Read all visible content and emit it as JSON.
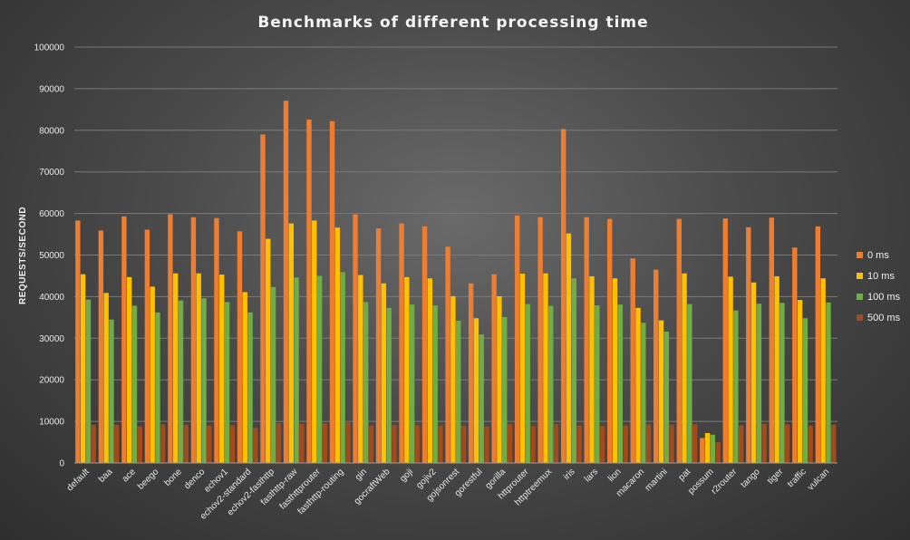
{
  "chart_data": {
    "type": "bar",
    "title": "Benchmarks  of  different  processing  time",
    "xlabel": "",
    "ylabel": "REQUESTS/SECOND",
    "ylim": [
      0,
      100000
    ],
    "yticks": [
      0,
      10000,
      20000,
      30000,
      40000,
      50000,
      60000,
      70000,
      80000,
      90000,
      100000
    ],
    "grid": true,
    "legend_position": "right",
    "categories": [
      "default",
      "baa",
      "ace",
      "beego",
      "bone",
      "denco",
      "echov1",
      "echov2-standard",
      "echov2-fasthttp",
      "fasthttp-raw",
      "fasthttprouter",
      "fasthttp-routing",
      "gin",
      "gocraftWeb",
      "goji",
      "gojiv2",
      "gojsonrest",
      "gorestful",
      "gorilla",
      "httprouter",
      "httptreemux",
      "iris",
      "lars",
      "lion",
      "macaron",
      "martini",
      "pat",
      "possum",
      "r2router",
      "tango",
      "tiger",
      "traffic",
      "vulcan"
    ],
    "series": [
      {
        "name": "0 ms",
        "color": "#ed7d31",
        "values": [
          58300,
          55900,
          59300,
          56100,
          59800,
          59100,
          58900,
          55700,
          79000,
          87100,
          82600,
          82200,
          59800,
          56400,
          57600,
          56900,
          52000,
          43200,
          45400,
          59500,
          59100,
          80300,
          59100,
          58700,
          49200,
          46500,
          58700,
          6000,
          58800,
          56700,
          59000,
          51800,
          56900
        ]
      },
      {
        "name": "10 ms",
        "color": "#ffc000",
        "values": [
          45400,
          40900,
          44700,
          42400,
          45600,
          45600,
          45300,
          41100,
          53900,
          57600,
          58300,
          56600,
          45200,
          43200,
          44700,
          44400,
          40100,
          34800,
          40100,
          45500,
          45600,
          55200,
          44900,
          44400,
          37300,
          34300,
          45600,
          7200,
          44800,
          43400,
          44900,
          39200,
          44400
        ]
      },
      {
        "name": "100 ms",
        "color": "#70ad47",
        "values": [
          39300,
          34500,
          37800,
          36200,
          39100,
          39600,
          38700,
          36200,
          42300,
          44600,
          45000,
          45900,
          38700,
          37300,
          38100,
          37900,
          34200,
          30900,
          35100,
          38200,
          37800,
          44400,
          37900,
          38100,
          33700,
          31600,
          38200,
          6800,
          36700,
          38300,
          38500,
          34800,
          38600
        ]
      },
      {
        "name": "500 ms",
        "color": "#a34a1d",
        "values": [
          9200,
          9200,
          8800,
          9300,
          9200,
          9000,
          9100,
          8400,
          9600,
          9400,
          9500,
          9700,
          9000,
          9100,
          9100,
          9000,
          8900,
          8800,
          9300,
          8900,
          9300,
          9000,
          8900,
          9000,
          9300,
          9200,
          9300,
          5000,
          9100,
          9400,
          9300,
          9000,
          9200
        ]
      }
    ]
  }
}
